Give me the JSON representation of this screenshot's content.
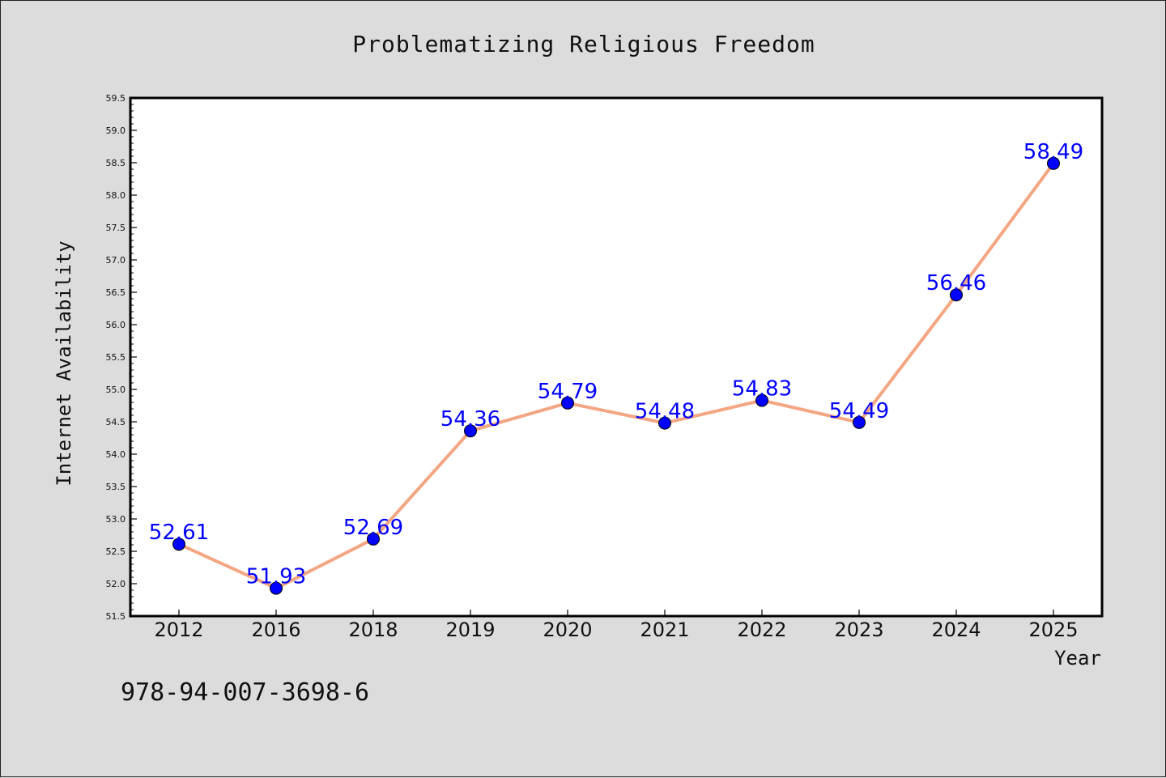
{
  "chart_data": {
    "type": "line",
    "title": "Problematizing Religious Freedom",
    "xlabel": "Year",
    "ylabel": "Internet Availability",
    "categories": [
      "2012",
      "2016",
      "2018",
      "2019",
      "2020",
      "2021",
      "2022",
      "2023",
      "2024",
      "2025"
    ],
    "series": [
      {
        "values": [
          52.61,
          51.93,
          52.69,
          54.36,
          54.79,
          54.48,
          54.83,
          54.49,
          56.46,
          58.49
        ],
        "labels": [
          "52.61",
          "51.93",
          "52.69",
          "54.36",
          "54.79",
          "54.48",
          "54.83",
          "54.49",
          "56.46",
          "58.49"
        ]
      }
    ],
    "ylim": [
      51.5,
      59.5
    ],
    "yticks": [
      "51.5",
      "52.0",
      "52.5",
      "53.0",
      "53.5",
      "54.0",
      "54.5",
      "55.0",
      "55.5",
      "56.0",
      "56.5",
      "57.0",
      "57.5",
      "58.0",
      "58.5",
      "59.0",
      "59.5"
    ],
    "grid": false,
    "colors": {
      "line": "#f4a582",
      "marker": "#0000ff",
      "label": "#0000ff",
      "background": "#dcdcdc",
      "plot_area": "#ffffff"
    }
  },
  "footer": {
    "isbn": "978-94-007-3698-6"
  }
}
